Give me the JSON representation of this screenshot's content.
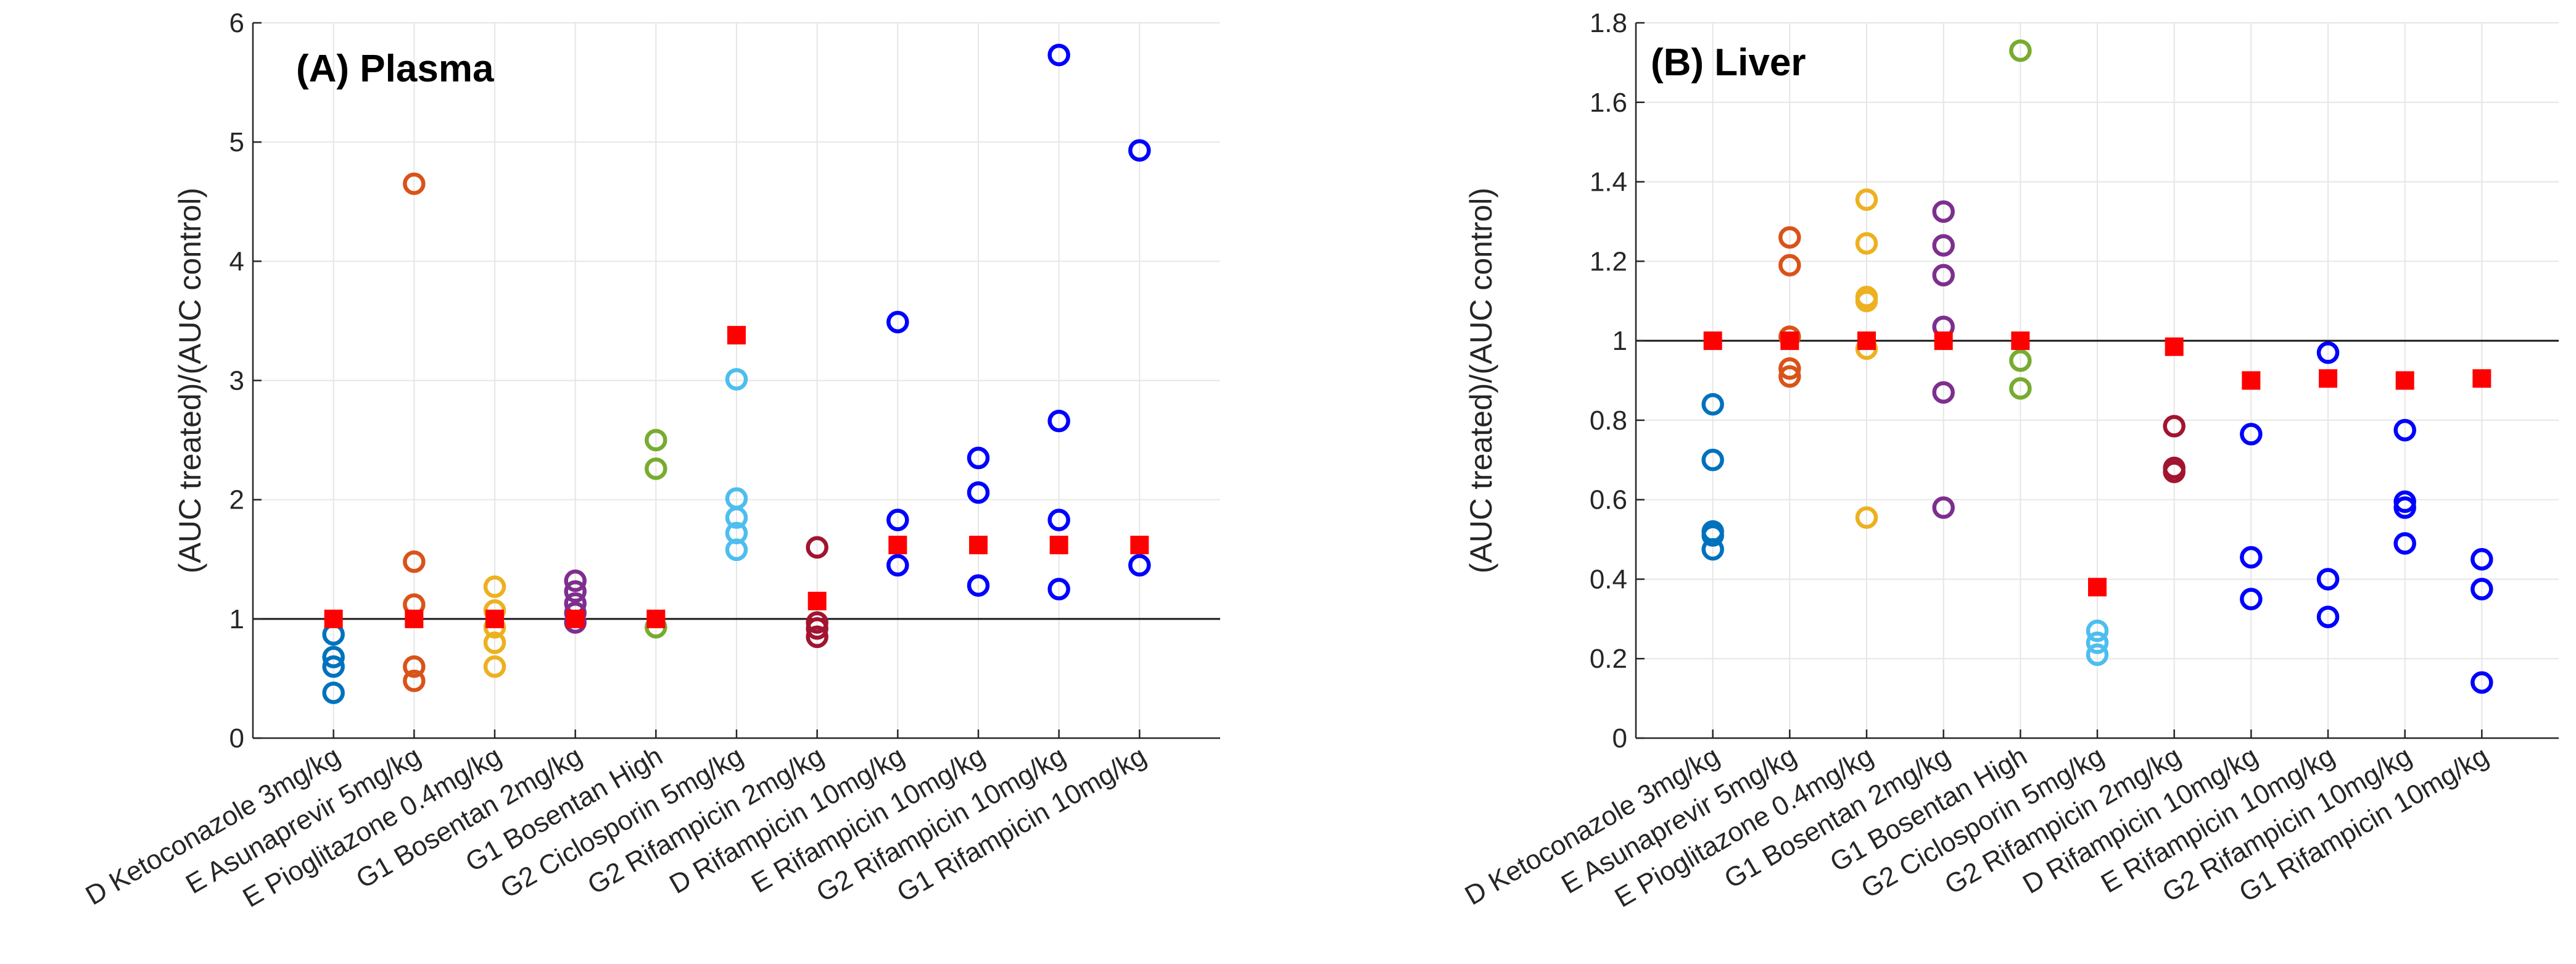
{
  "chart_data": [
    {
      "type": "scatter",
      "title": "(A) Plasma",
      "ylabel": "(AUC treated)/(AUC control)",
      "xlabel": "",
      "ylim": [
        0,
        6
      ],
      "yticks": [
        0,
        1,
        2,
        3,
        4,
        5,
        6
      ],
      "ytick_labels": [
        "0",
        "1",
        "2",
        "3",
        "4",
        "5",
        "6"
      ],
      "reference_line": 1,
      "grid": true,
      "categories": [
        "D Ketoconazole 3mg/kg",
        "E Asunaprevir 5mg/kg",
        "E Pioglitazone 0.4mg/kg",
        "G1 Bosentan 2mg/kg",
        "G1 Bosentan High",
        "G2 Ciclosporin 5mg/kg",
        "G2 Rifampicin 2mg/kg",
        "D Rifampicin 10mg/kg",
        "E Rifampicin 10mg/kg",
        "G2 Rifampicin 10mg/kg",
        "G1 Rifampicin 10mg/kg"
      ],
      "colors": [
        "#0072BD",
        "#D95319",
        "#EDB120",
        "#7E2F8E",
        "#77AC30",
        "#4DBEEE",
        "#A2142F",
        "#0000FF",
        "#0000FF",
        "#0000FF",
        "#0000FF"
      ],
      "observed": [
        [
          0.87,
          0.68,
          0.6,
          0.38
        ],
        [
          4.65,
          1.48,
          1.12,
          0.6,
          0.48
        ],
        [
          1.27,
          1.07,
          0.93,
          0.8,
          0.6
        ],
        [
          1.32,
          1.23,
          1.13,
          1.05,
          0.97
        ],
        [
          2.5,
          2.26,
          0.93
        ],
        [
          3.01,
          2.01,
          1.85,
          1.72,
          1.58
        ],
        [
          1.6,
          0.97,
          0.92,
          0.85
        ],
        [
          3.49,
          1.83,
          1.45
        ],
        [
          2.35,
          2.06,
          1.28
        ],
        [
          5.73,
          2.66,
          1.83,
          1.25
        ],
        [
          4.93,
          1.45
        ]
      ],
      "predicted": [
        1.0,
        1.0,
        1.0,
        1.0,
        1.0,
        3.38,
        1.15,
        1.62,
        1.62,
        1.62,
        1.62
      ],
      "predicted_color": "#FF0000"
    },
    {
      "type": "scatter",
      "title": "(B) Liver",
      "ylabel": "(AUC treated)/(AUC control)",
      "xlabel": "",
      "ylim": [
        0,
        1.8
      ],
      "yticks": [
        0,
        0.2,
        0.4,
        0.6,
        0.8,
        1,
        1.2,
        1.4,
        1.6,
        1.8
      ],
      "ytick_labels": [
        "0",
        "0.2",
        "0.4",
        "0.6",
        "0.8",
        "1",
        "1.2",
        "1.4",
        "1.6",
        "1.8"
      ],
      "reference_line": 1,
      "grid": true,
      "categories": [
        "D Ketoconazole 3mg/kg",
        "E Asunaprevir 5mg/kg",
        "E Pioglitazone 0.4mg/kg",
        "G1 Bosentan 2mg/kg",
        "G1 Bosentan High",
        "G2 Ciclosporin 5mg/kg",
        "G2 Rifampicin 2mg/kg",
        "D Rifampicin 10mg/kg",
        "E Rifampicin 10mg/kg",
        "G2 Rifampicin 10mg/kg",
        "G1 Rifampicin 10mg/kg"
      ],
      "colors": [
        "#0072BD",
        "#D95319",
        "#EDB120",
        "#7E2F8E",
        "#77AC30",
        "#4DBEEE",
        "#A2142F",
        "#0000FF",
        "#0000FF",
        "#0000FF",
        "#0000FF"
      ],
      "observed": [
        [
          0.84,
          0.7,
          0.52,
          0.51,
          0.475
        ],
        [
          1.26,
          1.19,
          1.01,
          0.93,
          0.91
        ],
        [
          1.355,
          1.245,
          1.11,
          1.1,
          0.98,
          0.555
        ],
        [
          1.325,
          1.24,
          1.165,
          1.035,
          0.87,
          0.58
        ],
        [
          1.73,
          0.95,
          0.88
        ],
        [
          0.27,
          0.24,
          0.21
        ],
        [
          0.785,
          0.68,
          0.67
        ],
        [
          0.765,
          0.455,
          0.35
        ],
        [
          0.97,
          0.4,
          0.305
        ],
        [
          0.775,
          0.595,
          0.58,
          0.49
        ],
        [
          0.45,
          0.375,
          0.14
        ]
      ],
      "predicted": [
        1.0,
        1.0,
        1.0,
        1.0,
        1.0,
        0.38,
        0.985,
        0.9,
        0.905,
        0.9,
        0.905
      ],
      "predicted_color": "#FF0000"
    }
  ]
}
